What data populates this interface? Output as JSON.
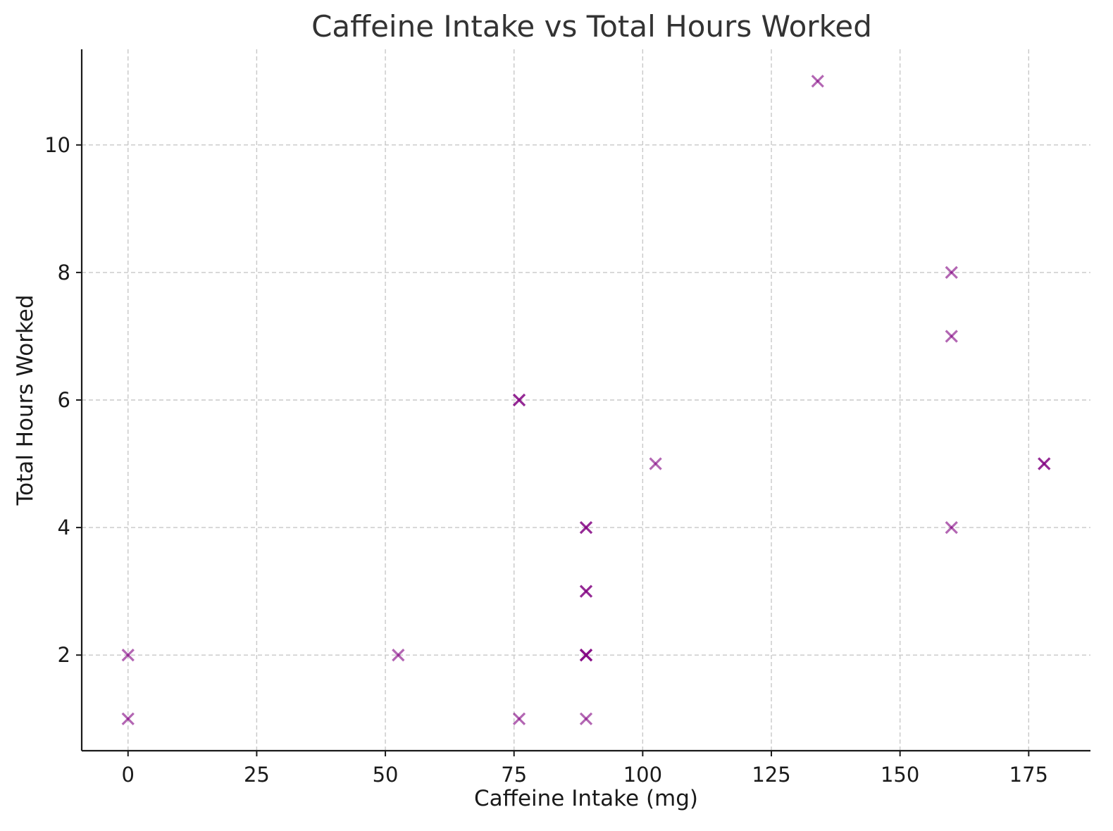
{
  "chart_data": {
    "type": "scatter",
    "title": "Caffeine Intake vs Total Hours Worked",
    "xlabel": "Caffeine Intake (mg)",
    "ylabel": "Total Hours Worked",
    "xlim": [
      -9,
      187
    ],
    "ylim": [
      0.5,
      11.5
    ],
    "xticks": [
      0,
      25,
      50,
      75,
      100,
      125,
      150,
      175
    ],
    "yticks": [
      2,
      4,
      6,
      8,
      10
    ],
    "grid": true,
    "marker": "x",
    "marker_color": "#800080",
    "marker_opacity": 0.6,
    "series": [
      {
        "points": [
          {
            "x": 0,
            "y": 1
          },
          {
            "x": 0,
            "y": 2
          },
          {
            "x": 52.5,
            "y": 2
          },
          {
            "x": 76,
            "y": 1
          },
          {
            "x": 76,
            "y": 6
          },
          {
            "x": 76,
            "y": 6
          },
          {
            "x": 89,
            "y": 1
          },
          {
            "x": 89,
            "y": 2
          },
          {
            "x": 89,
            "y": 2
          },
          {
            "x": 89,
            "y": 2
          },
          {
            "x": 89,
            "y": 3
          },
          {
            "x": 89,
            "y": 3
          },
          {
            "x": 89,
            "y": 4
          },
          {
            "x": 89,
            "y": 4
          },
          {
            "x": 102.5,
            "y": 5
          },
          {
            "x": 134,
            "y": 11
          },
          {
            "x": 160,
            "y": 4
          },
          {
            "x": 160,
            "y": 7
          },
          {
            "x": 160,
            "y": 8
          },
          {
            "x": 178,
            "y": 5
          },
          {
            "x": 178,
            "y": 5
          }
        ]
      }
    ]
  }
}
